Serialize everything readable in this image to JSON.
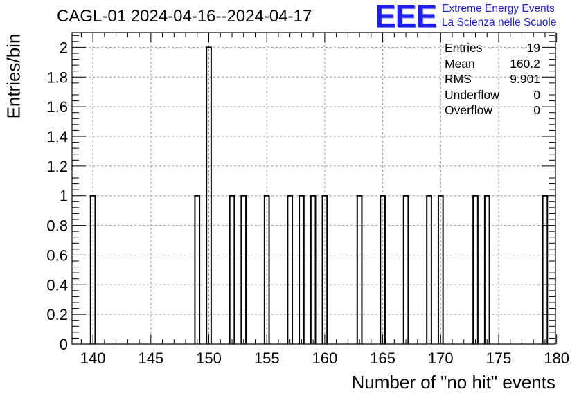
{
  "chart_data": {
    "type": "bar",
    "title": "CAGL-01 2024-04-16--2024-04-17",
    "xlabel": "Number of \"no hit\" events",
    "ylabel": "Entries/bin",
    "xlim": [
      138.2,
      179.9
    ],
    "ylim": [
      0,
      2.1
    ],
    "bin_width": 0.4,
    "x_ticks": [
      140,
      145,
      150,
      155,
      160,
      165,
      170,
      175,
      180
    ],
    "y_ticks": [
      0,
      0.2,
      0.4,
      0.6,
      0.8,
      1,
      1.2,
      1.4,
      1.6,
      1.8,
      2
    ],
    "grid": true,
    "x": [
      140,
      149,
      150,
      152,
      153,
      155,
      157,
      158,
      159,
      160,
      163,
      165,
      167,
      169,
      170,
      173,
      174,
      179
    ],
    "values": [
      1,
      1,
      2,
      1,
      1,
      1,
      1,
      1,
      1,
      1,
      1,
      1,
      1,
      1,
      1,
      1,
      1,
      1
    ],
    "stats": [
      {
        "label": "Entries",
        "value": "19"
      },
      {
        "label": "Mean",
        "value": "160.2"
      },
      {
        "label": "RMS",
        "value": "9.901"
      },
      {
        "label": "Underflow",
        "value": "0"
      },
      {
        "label": "Overflow",
        "value": "0"
      }
    ]
  },
  "logo": {
    "mark": "EEE",
    "line1": "Extreme Energy Events",
    "line2": "La Scienza nelle Scuole",
    "color": "#1f1fe6"
  }
}
